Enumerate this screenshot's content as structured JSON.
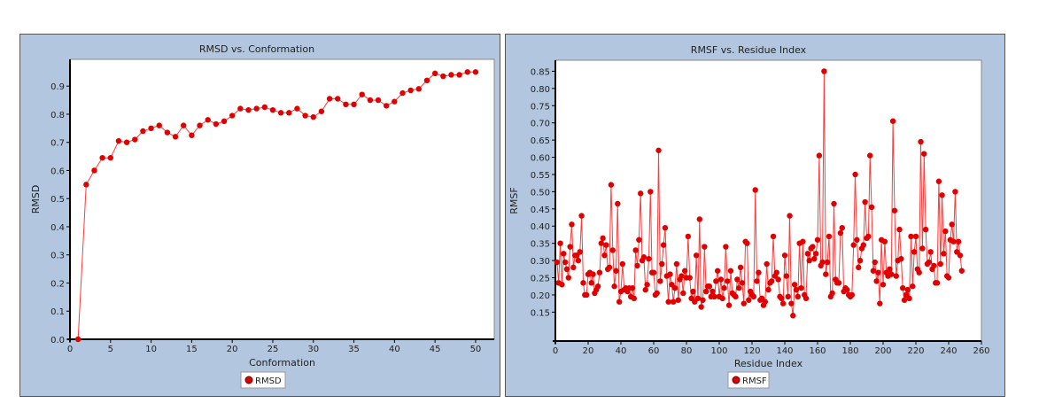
{
  "chart_data": [
    {
      "type": "line",
      "title": "RMSD vs. Conformation",
      "xlabel": "Conformation",
      "ylabel": "RMSD",
      "xlim": [
        0,
        52.3
      ],
      "ylim": [
        0,
        0.995
      ],
      "xticks": [
        0,
        5,
        10,
        15,
        20,
        25,
        30,
        35,
        40,
        45,
        50
      ],
      "yticks": [
        0.0,
        0.1,
        0.2,
        0.3,
        0.4,
        0.5,
        0.6,
        0.7,
        0.8,
        0.9
      ],
      "ytick_decimals": 1,
      "legend": "bottom-center",
      "series": [
        {
          "name": "RMSD",
          "color": "#e00000",
          "x": [
            1,
            2,
            3,
            4,
            5,
            6,
            7,
            8,
            9,
            10,
            11,
            12,
            13,
            14,
            15,
            16,
            17,
            18,
            19,
            20,
            21,
            22,
            23,
            24,
            25,
            26,
            27,
            28,
            29,
            30,
            31,
            32,
            33,
            34,
            35,
            36,
            37,
            38,
            39,
            40,
            41,
            42,
            43,
            44,
            45,
            46,
            47,
            48,
            49,
            50
          ],
          "values": [
            0.0,
            0.55,
            0.6,
            0.645,
            0.645,
            0.705,
            0.7,
            0.71,
            0.74,
            0.75,
            0.76,
            0.735,
            0.72,
            0.76,
            0.725,
            0.76,
            0.78,
            0.765,
            0.775,
            0.795,
            0.82,
            0.815,
            0.82,
            0.825,
            0.815,
            0.805,
            0.805,
            0.82,
            0.795,
            0.79,
            0.81,
            0.855,
            0.855,
            0.835,
            0.835,
            0.87,
            0.85,
            0.85,
            0.83,
            0.845,
            0.875,
            0.885,
            0.89,
            0.92,
            0.945,
            0.935,
            0.94,
            0.94,
            0.95,
            0.95
          ]
        }
      ]
    },
    {
      "type": "line",
      "title": "RMSF vs. Residue Index",
      "xlabel": "Residue Index",
      "ylabel": "RMSF",
      "xlim": [
        0,
        260
      ],
      "ylim": [
        0.066,
        0.882
      ],
      "xticks": [
        0,
        20,
        40,
        60,
        80,
        100,
        120,
        140,
        160,
        180,
        200,
        220,
        240,
        260
      ],
      "yticks": [
        0.15,
        0.2,
        0.25,
        0.3,
        0.35,
        0.4,
        0.45,
        0.5,
        0.55,
        0.6,
        0.65,
        0.7,
        0.75,
        0.8,
        0.85
      ],
      "ytick_decimals": 2,
      "legend": "bottom-center",
      "series": [
        {
          "name": "RMSF",
          "color": "#e00000",
          "x_start": 1,
          "values": [
            0.295,
            0.235,
            0.35,
            0.23,
            0.32,
            0.295,
            0.275,
            0.25,
            0.34,
            0.405,
            0.28,
            0.315,
            0.315,
            0.3,
            0.325,
            0.43,
            0.235,
            0.2,
            0.2,
            0.26,
            0.265,
            0.235,
            0.26,
            0.205,
            0.215,
            0.225,
            0.265,
            0.35,
            0.365,
            0.315,
            0.345,
            0.275,
            0.28,
            0.52,
            0.33,
            0.225,
            0.27,
            0.465,
            0.18,
            0.21,
            0.29,
            0.215,
            0.22,
            0.21,
            0.22,
            0.195,
            0.22,
            0.19,
            0.33,
            0.285,
            0.36,
            0.495,
            0.3,
            0.31,
            0.215,
            0.23,
            0.305,
            0.5,
            0.265,
            0.265,
            0.2,
            0.205,
            0.62,
            0.24,
            0.29,
            0.345,
            0.395,
            0.255,
            0.18,
            0.26,
            0.23,
            0.18,
            0.22,
            0.29,
            0.185,
            0.245,
            0.255,
            0.205,
            0.27,
            0.25,
            0.37,
            0.25,
            0.19,
            0.21,
            0.18,
            0.315,
            0.19,
            0.42,
            0.165,
            0.185,
            0.34,
            0.21,
            0.225,
            0.225,
            0.195,
            0.21,
            0.195,
            0.24,
            0.27,
            0.195,
            0.245,
            0.19,
            0.22,
            0.34,
            0.24,
            0.17,
            0.27,
            0.205,
            0.2,
            0.195,
            0.245,
            0.22,
            0.28,
            0.235,
            0.175,
            0.355,
            0.35,
            0.185,
            0.21,
            0.2,
            0.195,
            0.505,
            0.24,
            0.265,
            0.185,
            0.19,
            0.17,
            0.18,
            0.29,
            0.215,
            0.235,
            0.24,
            0.37,
            0.255,
            0.265,
            0.245,
            0.195,
            0.19,
            0.175,
            0.315,
            0.255,
            0.195,
            0.43,
            0.175,
            0.14,
            0.23,
            0.215,
            0.195,
            0.35,
            0.22,
            0.355,
            0.2,
            0.19,
            0.32,
            0.3,
            0.335,
            0.34,
            0.305,
            0.32,
            0.36,
            0.605,
            0.285,
            0.295,
            0.85,
            0.26,
            0.295,
            0.37,
            0.195,
            0.205,
            0.465,
            0.245,
            0.235,
            0.235,
            0.38,
            0.395,
            0.21,
            0.22,
            0.215,
            0.2,
            0.195,
            0.2,
            0.345,
            0.55,
            0.36,
            0.28,
            0.3,
            0.335,
            0.345,
            0.47,
            0.365,
            0.37,
            0.605,
            0.455,
            0.27,
            0.295,
            0.24,
            0.265,
            0.175,
            0.36,
            0.23,
            0.355,
            0.265,
            0.255,
            0.275,
            0.26,
            0.705,
            0.445,
            0.255,
            0.3,
            0.39,
            0.305,
            0.22,
            0.185,
            0.2,
            0.215,
            0.19,
            0.37,
            0.225,
            0.325,
            0.37,
            0.275,
            0.265,
            0.645,
            0.335,
            0.61,
            0.39,
            0.29,
            0.295,
            0.325,
            0.275,
            0.285,
            0.235,
            0.235,
            0.53,
            0.29,
            0.49,
            0.32,
            0.385,
            0.255,
            0.25,
            0.36,
            0.405,
            0.355,
            0.5,
            0.325,
            0.355,
            0.315,
            0.27
          ]
        }
      ]
    }
  ]
}
